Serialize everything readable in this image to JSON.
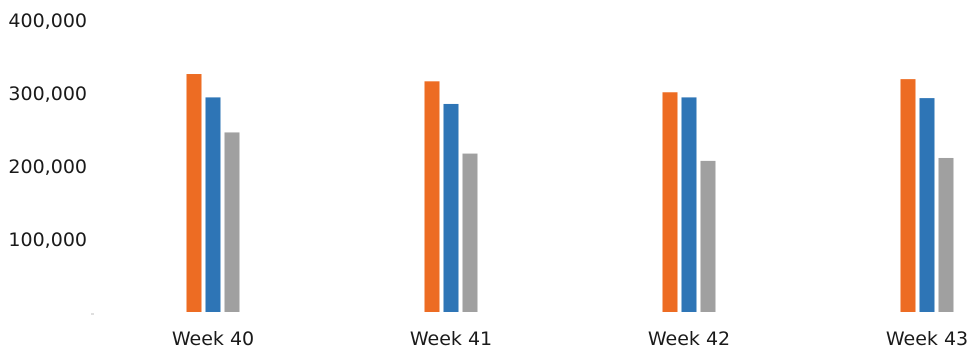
{
  "chart_data": {
    "type": "bar",
    "categories": [
      "Week 40",
      "Week 41",
      "Week 42",
      "Week 43"
    ],
    "series": [
      {
        "color": "#ED6C23",
        "values": [
          326000,
          316000,
          301000,
          319000
        ]
      },
      {
        "color": "#2E75B6",
        "values": [
          294000,
          285000,
          294000,
          293000
        ]
      },
      {
        "color": "#A0A0A0",
        "values": [
          246000,
          217000,
          207000,
          211000
        ]
      }
    ],
    "yticks": [
      {
        "value": 100000,
        "label": "100,000"
      },
      {
        "value": 200000,
        "label": "200,000"
      },
      {
        "value": 300000,
        "label": "300,000"
      },
      {
        "value": 400000,
        "label": "400,000"
      }
    ],
    "ylim": [
      0,
      400000
    ],
    "grid": false,
    "legend": "none"
  }
}
